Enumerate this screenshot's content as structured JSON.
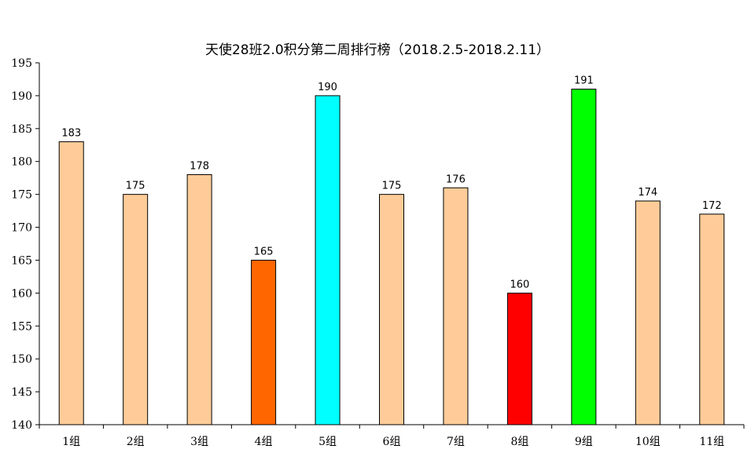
{
  "chart_data": {
    "type": "bar",
    "title": "天使28班2.0积分第二周排行榜（2018.2.5-2018.2.11）",
    "xlabel": "",
    "ylabel": "",
    "categories": [
      "1组",
      "2组",
      "3组",
      "4组",
      "5组",
      "6组",
      "7组",
      "8组",
      "9组",
      "10组",
      "11组"
    ],
    "values": [
      183,
      175,
      178,
      165,
      190,
      175,
      176,
      160,
      191,
      174,
      172
    ],
    "bar_colors": [
      "#FFCC99",
      "#FFCC99",
      "#FFCC99",
      "#FF6600",
      "#00FFFF",
      "#FFCC99",
      "#FFCC99",
      "#FF0000",
      "#00FF00",
      "#FFCC99",
      "#FFCC99"
    ],
    "ylim": [
      140,
      195
    ],
    "yticks": [
      140,
      145,
      150,
      155,
      160,
      165,
      170,
      175,
      180,
      185,
      190,
      195
    ],
    "grid": false,
    "legend": "none",
    "data_labels": true
  }
}
